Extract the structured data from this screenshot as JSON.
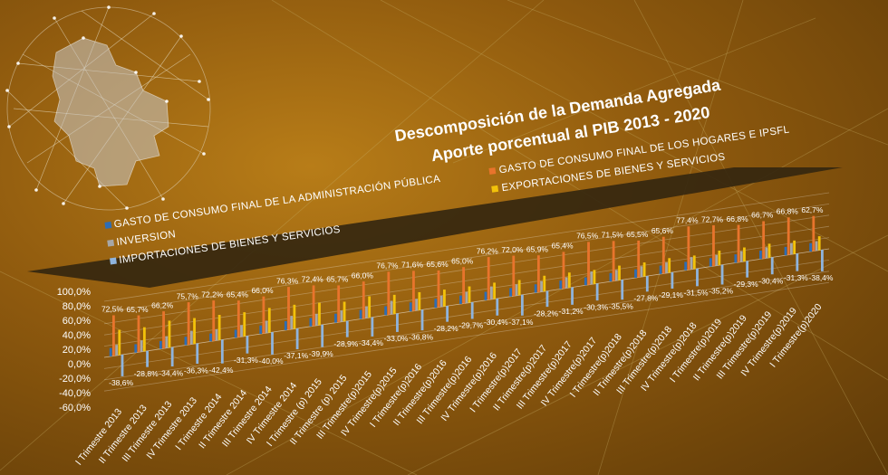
{
  "colors": {
    "gobierno": "#2e6db4",
    "hogares": "#e8742c",
    "inversion": "#a7a7a7",
    "exportaciones": "#f2c20a",
    "importaciones": "#8fb4dd",
    "legend_band": "#3a2a14"
  },
  "chart_data": {
    "type": "bar",
    "title": "Descomposición de la Demanda Agregada",
    "subtitle": "Aporte porcentual al PIB 2013 - 2020",
    "xlabel": "",
    "ylabel": "",
    "ylim": [
      -60,
      100
    ],
    "yticks": [
      "100,0%",
      "80,0%",
      "60,0%",
      "40,0%",
      "20,0%",
      "0,0%",
      "-20,0%",
      "-40,0%",
      "-60,0%"
    ],
    "grid": true,
    "legend_left": [
      "GASTO DE CONSUMO FINAL DE LA ADMINISTRACIÓN PÚBLICA",
      "INVERSION",
      "IMPORTACIONES DE BIENES Y SERVICIOS"
    ],
    "legend_right": [
      "GASTO DE CONSUMO FINAL DE LOS HOGARES E IPSFL",
      "EXPORTACIONES DE BIENES Y SERVICIOS"
    ],
    "categories": [
      "I Trimestre 2013",
      "II Trimestre 2013",
      "III Trimestre 2013",
      "IV Trimestre 2013",
      "I Trimestre 2014",
      "II Trimestre 2014",
      "III Trimestre 2014",
      "IV Trimestre 2014",
      "I Trimestre (p) 2015",
      "II Trimestre (p) 2015",
      "III Trimestre(p)2015",
      "IV Trimestre(p)2015",
      "I Trimestre(p)2016",
      "II Trimestre(p)2016",
      "III Trimestre(p)2016",
      "IV Trimestre(p)2016",
      "I Trimestre(p)2017",
      "II Trimestre(p)2017",
      "III Trimestre(p)2017",
      "IV Trimestre(p)2017",
      "I Trimestre(p)2018",
      "II Trimestre(p)2018",
      "III Trimestre(p)2018",
      "IV Trimestre(p)2018",
      "I Trimestre(p)2019",
      "II Trimestre(p)2019",
      "III Trimestre(p)2019",
      "IV Trimestre(p)2019",
      "I Trimestre(p)2020"
    ],
    "series": [
      {
        "name": "GASTO DE CONSUMO FINAL DE LA ADMINISTRACIÓN PÚBLICA",
        "color_key": "gobierno",
        "values": [
          15,
          15,
          14,
          15,
          14,
          14,
          15,
          16,
          15,
          16,
          16,
          16,
          16,
          16,
          15,
          15,
          15,
          15,
          15,
          14,
          15,
          15,
          15,
          15,
          15,
          15,
          15,
          15,
          15
        ]
      },
      {
        "name": "GASTO DE CONSUMO FINAL DE LOS HOGARES E IPSFL",
        "color_key": "hogares",
        "values": [
          72.5,
          65.7,
          66.2,
          75.7,
          72.2,
          65.4,
          66.0,
          76.3,
          72.4,
          65.7,
          66.0,
          76.7,
          71.6,
          65.6,
          65.0,
          76.2,
          72.0,
          65.9,
          65.4,
          76.5,
          71.5,
          65.5,
          65.6,
          77.4,
          72.7,
          66.8,
          66.7,
          66.8,
          62.7
        ],
        "labels": [
          "72,5%",
          "65,7%",
          "66,2%",
          "75,7%",
          "72,2%",
          "65,4%",
          "66,0%",
          "76,3%",
          "72,4%",
          "65,7%",
          "66,0%",
          "76,7%",
          "71,6%",
          "65,6%",
          "65,0%",
          "76,2%",
          "72,0%",
          "65,9%",
          "65,4%",
          "76,5%",
          "71,5%",
          "65,5%",
          "65,6%",
          "77,4%",
          "72,7%",
          "66,8%",
          "66,7%",
          "66,8%",
          "62,7%"
        ]
      },
      {
        "name": "INVERSION",
        "color_key": "inversion",
        "values": [
          19,
          20,
          21,
          24,
          20,
          21,
          22,
          24,
          21,
          20,
          21,
          24,
          21,
          20,
          20,
          23,
          20,
          19,
          19,
          23,
          19,
          19,
          19,
          22,
          19,
          19,
          19,
          20,
          17
        ]
      },
      {
        "name": "EXPORTACIONES DE BIENES Y SERVICIOS",
        "color_key": "exportaciones",
        "values": [
          45,
          43,
          48,
          46,
          45,
          43,
          44,
          43,
          40,
          35,
          38,
          34,
          32,
          30,
          29,
          29,
          27,
          28,
          27,
          25,
          26,
          25,
          26,
          24,
          26,
          25,
          25,
          24,
          25
        ]
      },
      {
        "name": "IMPORTACIONES DE BIENES Y SERVICIOS",
        "color_key": "importaciones",
        "values": [
          -38.6,
          -28.8,
          -34.4,
          -36.3,
          -42.4,
          -31.3,
          -40.0,
          -37.1,
          -39.9,
          -28.9,
          -34.4,
          -33.0,
          -36.8,
          -28.2,
          -29.7,
          -30.4,
          -37.1,
          -28.2,
          -31.2,
          -30.3,
          -35.5,
          -27.8,
          -29.1,
          -31.5,
          -35.2,
          -29.3,
          -30.4,
          -31.3,
          -38.4
        ],
        "labels": [
          "-38,6%",
          "-28,8%",
          "-34,4%",
          "-36,3%",
          "-42,4%",
          "-31,3%",
          "-40,0%",
          "-37,1%",
          "-39,9%",
          "-28,9%",
          "-34,4%",
          "-33,0%",
          "-36,8%",
          "-28,2%",
          "-29,7%",
          "-30,4%",
          "-37,1%",
          "-28,2%",
          "-31,2%",
          "-30,3%",
          "-35,5%",
          "-27,8%",
          "-29,1%",
          "-31,5%",
          "-35,2%",
          "-29,3%",
          "-30,4%",
          "-31,3%",
          "-38,4%"
        ]
      }
    ]
  }
}
